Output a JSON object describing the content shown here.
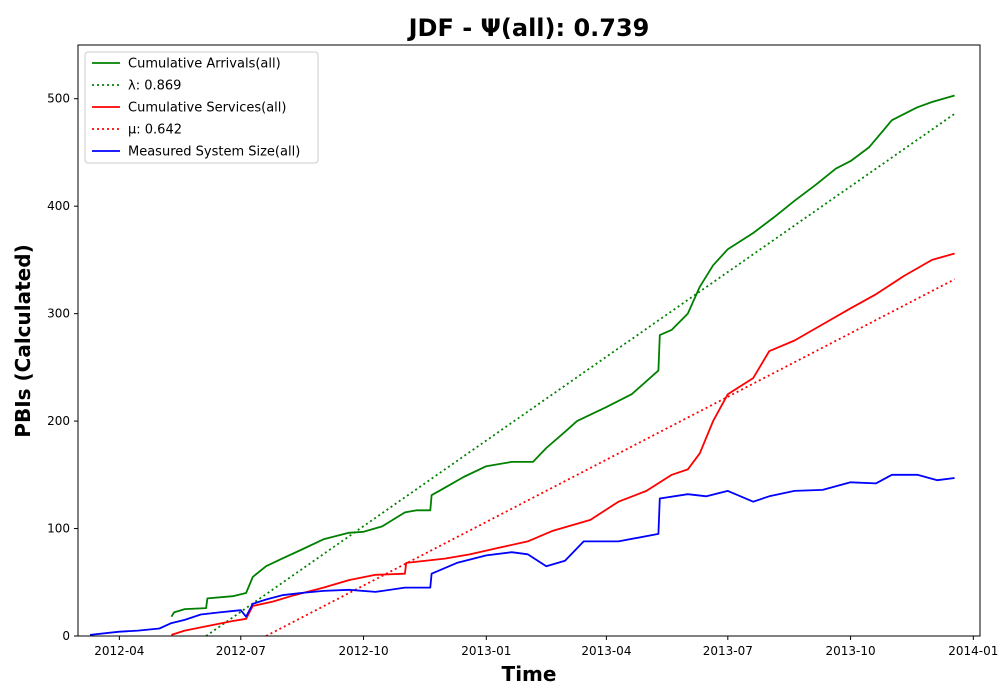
{
  "chart_data": {
    "type": "line",
    "title": "JDF -  Ψ(all): 0.739",
    "xlabel": "Time",
    "ylabel": "PBIs (Calculated)",
    "xlim": [
      "2012-03-01",
      "2014-01-06"
    ],
    "ylim": [
      0,
      550
    ],
    "x_ticks": [
      "2012-04",
      "2012-07",
      "2012-10",
      "2013-01",
      "2013-04",
      "2013-07",
      "2013-10",
      "2014-01"
    ],
    "y_ticks": [
      0,
      100,
      200,
      300,
      400,
      500
    ],
    "grid": false,
    "legend_position": "top-left",
    "series": [
      {
        "name": "Cumulative Arrivals(all)",
        "color": "#008000",
        "style": "solid",
        "x": [
          "2012-05-10",
          "2012-05-12",
          "2012-05-20",
          "2012-06-05",
          "2012-06-06",
          "2012-06-25",
          "2012-07-05",
          "2012-07-10",
          "2012-07-20",
          "2012-08-01",
          "2012-08-15",
          "2012-09-01",
          "2012-09-20",
          "2012-10-01",
          "2012-10-15",
          "2012-11-01",
          "2012-11-10",
          "2012-11-20",
          "2012-11-21",
          "2012-12-01",
          "2012-12-15",
          "2013-01-01",
          "2013-01-20",
          "2013-02-05",
          "2013-02-15",
          "2013-03-01",
          "2013-03-10",
          "2013-04-01",
          "2013-04-20",
          "2013-05-10",
          "2013-05-11",
          "2013-05-20",
          "2013-06-01",
          "2013-06-10",
          "2013-06-20",
          "2013-07-01",
          "2013-07-20",
          "2013-08-05",
          "2013-08-20",
          "2013-09-05",
          "2013-09-20",
          "2013-10-01",
          "2013-10-15",
          "2013-11-01",
          "2013-11-20",
          "2013-12-01",
          "2013-12-18"
        ],
        "y": [
          18,
          22,
          25,
          26,
          35,
          37,
          40,
          55,
          65,
          72,
          80,
          90,
          96,
          97,
          102,
          115,
          117,
          117,
          131,
          138,
          148,
          158,
          162,
          162,
          175,
          190,
          200,
          213,
          225,
          247,
          280,
          285,
          300,
          325,
          345,
          360,
          375,
          390,
          405,
          420,
          435,
          442,
          455,
          480,
          492,
          497,
          503
        ]
      },
      {
        "name": "λ: 0.869",
        "color": "#008000",
        "style": "dotted",
        "x": [
          "2012-06-05",
          "2013-12-18"
        ],
        "y": [
          0,
          486
        ]
      },
      {
        "name": "Cumulative Services(all)",
        "color": "#ff0000",
        "style": "solid",
        "x": [
          "2012-05-10",
          "2012-05-20",
          "2012-06-01",
          "2012-06-25",
          "2012-07-05",
          "2012-07-10",
          "2012-07-25",
          "2012-08-10",
          "2012-09-01",
          "2012-09-20",
          "2012-10-10",
          "2012-11-01",
          "2012-11-02",
          "2012-12-01",
          "2012-12-20",
          "2013-01-10",
          "2013-02-01",
          "2013-02-20",
          "2013-03-20",
          "2013-04-10",
          "2013-05-01",
          "2013-05-20",
          "2013-06-01",
          "2013-06-10",
          "2013-06-20",
          "2013-07-01",
          "2013-07-20",
          "2013-08-01",
          "2013-08-20",
          "2013-09-10",
          "2013-10-01",
          "2013-10-20",
          "2013-11-10",
          "2013-12-01",
          "2013-12-18"
        ],
        "y": [
          1,
          5,
          8,
          14,
          16,
          28,
          32,
          38,
          45,
          52,
          57,
          58,
          68,
          72,
          76,
          82,
          88,
          98,
          108,
          125,
          135,
          150,
          155,
          170,
          200,
          225,
          240,
          265,
          275,
          290,
          305,
          318,
          335,
          350,
          356
        ]
      },
      {
        "name": "μ: 0.642",
        "color": "#ff0000",
        "style": "dotted",
        "x": [
          "2012-07-20",
          "2013-12-18"
        ],
        "y": [
          0,
          332
        ]
      },
      {
        "name": "Measured System Size(all)",
        "color": "#0000ff",
        "style": "solid",
        "x": [
          "2012-03-10",
          "2012-04-01",
          "2012-04-15",
          "2012-05-01",
          "2012-05-10",
          "2012-05-20",
          "2012-06-01",
          "2012-06-15",
          "2012-07-01",
          "2012-07-05",
          "2012-07-10",
          "2012-07-20",
          "2012-08-01",
          "2012-08-15",
          "2012-09-01",
          "2012-09-20",
          "2012-10-10",
          "2012-11-01",
          "2012-11-20",
          "2012-11-21",
          "2012-12-10",
          "2013-01-01",
          "2013-01-20",
          "2013-02-01",
          "2013-02-15",
          "2013-03-01",
          "2013-03-15",
          "2013-04-10",
          "2013-05-10",
          "2013-05-11",
          "2013-06-01",
          "2013-06-15",
          "2013-07-01",
          "2013-07-20",
          "2013-08-01",
          "2013-08-20",
          "2013-09-10",
          "2013-10-01",
          "2013-10-20",
          "2013-11-01",
          "2013-11-20",
          "2013-12-05",
          "2013-12-18"
        ],
        "y": [
          1,
          4,
          5,
          7,
          12,
          15,
          20,
          22,
          24,
          18,
          30,
          34,
          38,
          40,
          42,
          43,
          41,
          45,
          45,
          58,
          68,
          75,
          78,
          76,
          65,
          70,
          88,
          88,
          95,
          128,
          132,
          130,
          135,
          125,
          130,
          135,
          136,
          143,
          142,
          150,
          150,
          145,
          147
        ]
      }
    ]
  }
}
